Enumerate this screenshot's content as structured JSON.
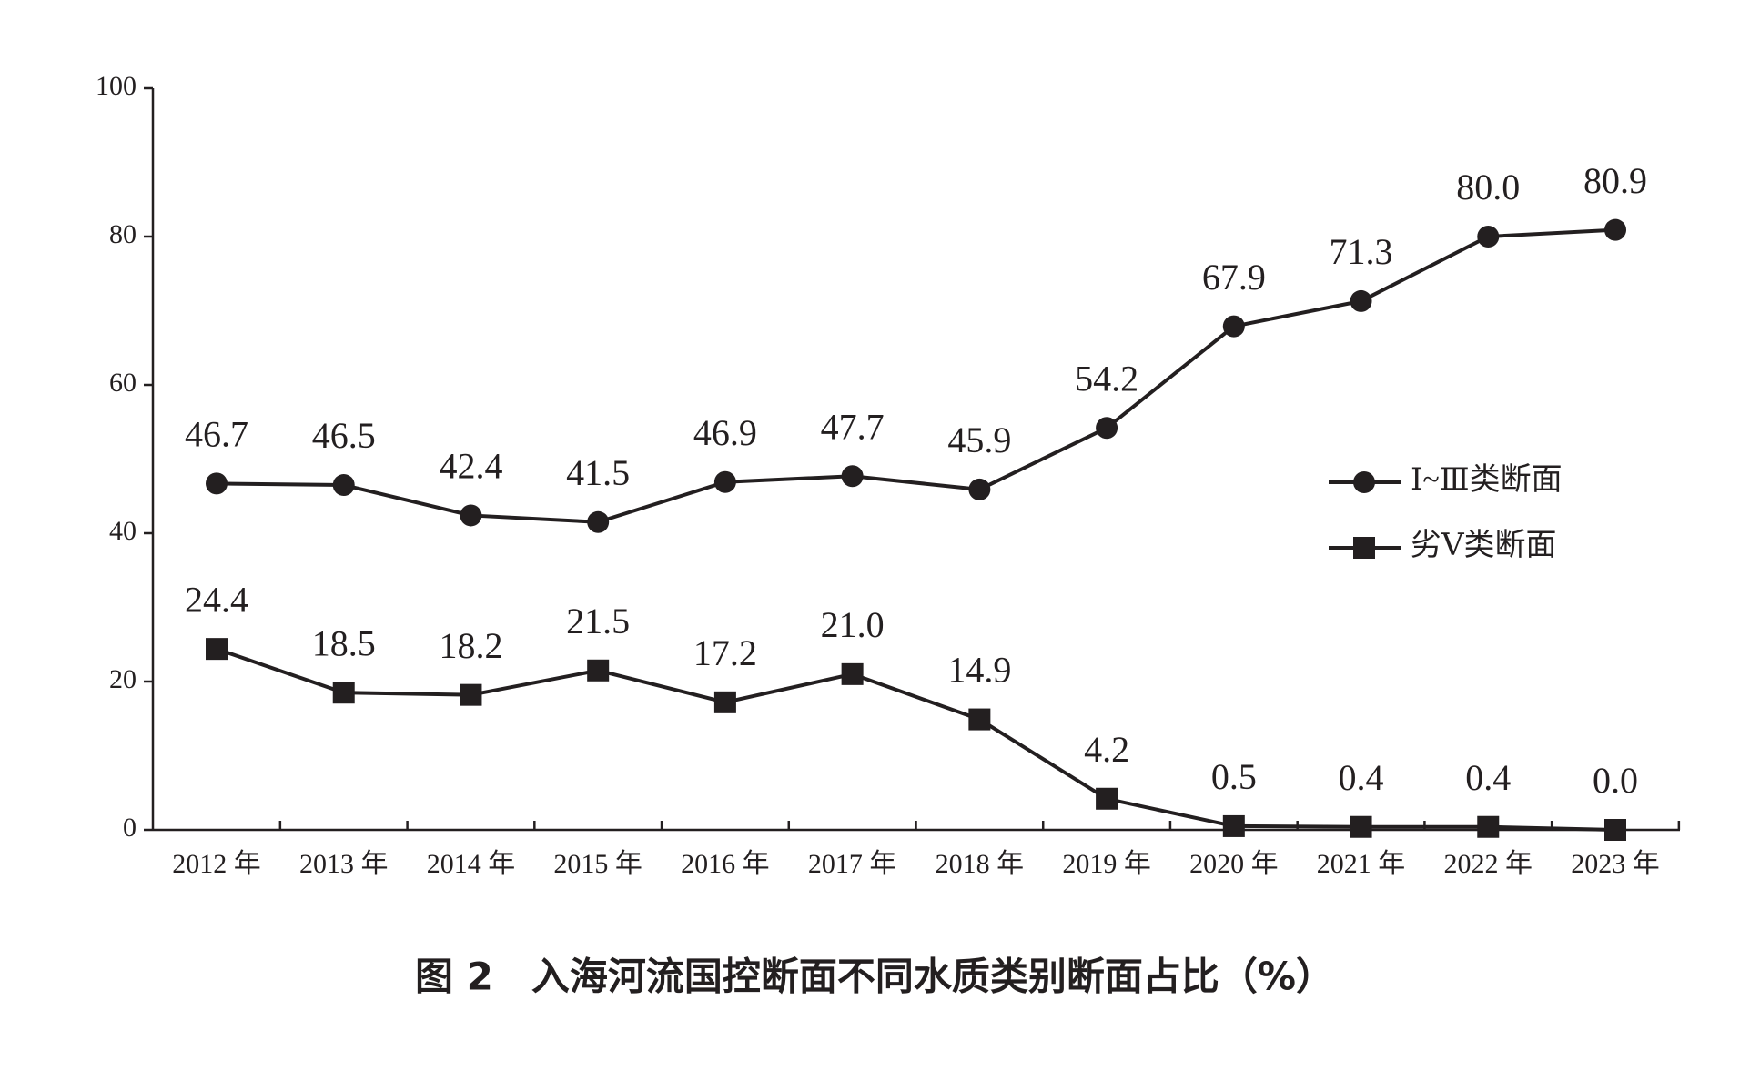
{
  "chart_data": {
    "type": "line",
    "title": "图 2　入海河流国控断面不同水质类别断面占比（%）",
    "categories": [
      "2012 年",
      "2013 年",
      "2014 年",
      "2015 年",
      "2016 年",
      "2017 年",
      "2018 年",
      "2019 年",
      "2020 年",
      "2021 年",
      "2022 年",
      "2023 年"
    ],
    "series": [
      {
        "name": "Ⅰ~Ⅲ类断面",
        "color": "#231f20",
        "marker": "circle",
        "values": [
          46.7,
          46.5,
          42.4,
          41.5,
          46.9,
          47.7,
          45.9,
          54.2,
          67.9,
          71.3,
          80,
          80.9
        ],
        "value_labels": [
          "46.7",
          "46.5",
          "42.4",
          "41.5",
          "46.9",
          "47.7",
          "45.9",
          "54.2",
          "67.9",
          "71.3",
          "80.0",
          "80.9"
        ]
      },
      {
        "name": "劣Ⅴ类断面",
        "color": "#231f20",
        "marker": "square",
        "values": [
          24.4,
          18.5,
          18.2,
          21.5,
          17.2,
          21,
          14.9,
          4.2,
          0.5,
          0.4,
          0.4,
          0
        ],
        "value_labels": [
          "24.4",
          "18.5",
          "18.2",
          "21.5",
          "17.2",
          "21.0",
          "14.9",
          "4.2",
          "0.5",
          "0.4",
          "0.4",
          "0.0"
        ]
      }
    ],
    "ylim": [
      0,
      100
    ],
    "yticks": [
      0,
      20,
      40,
      60,
      80,
      100
    ],
    "grid": false,
    "legend": "right"
  }
}
